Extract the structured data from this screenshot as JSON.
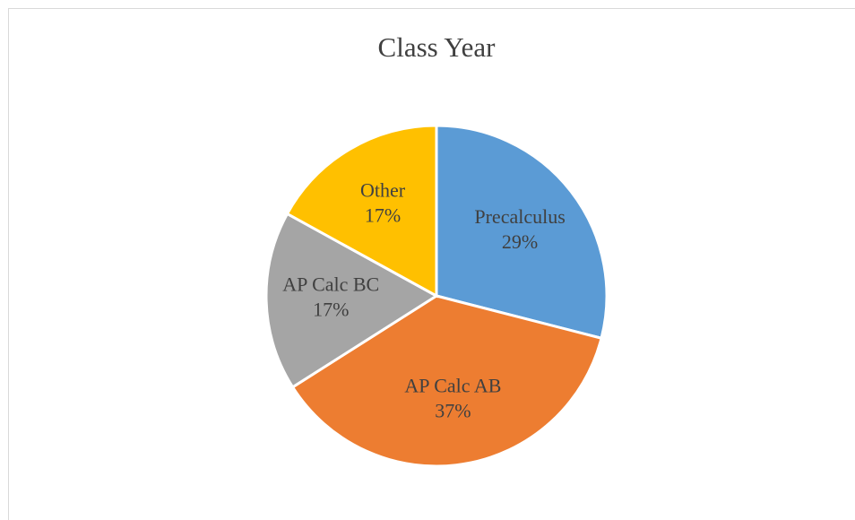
{
  "chart_data": {
    "type": "pie",
    "title": "Class Year",
    "categories": [
      "Precalculus",
      "AP Calc AB",
      "AP Calc BC",
      "Other"
    ],
    "values": [
      29,
      37,
      17,
      17
    ],
    "value_labels": [
      "29%",
      "37%",
      "17%",
      "17%"
    ],
    "colors": [
      "#5b9bd5",
      "#ed7d31",
      "#a5a5a5",
      "#ffc000"
    ]
  }
}
